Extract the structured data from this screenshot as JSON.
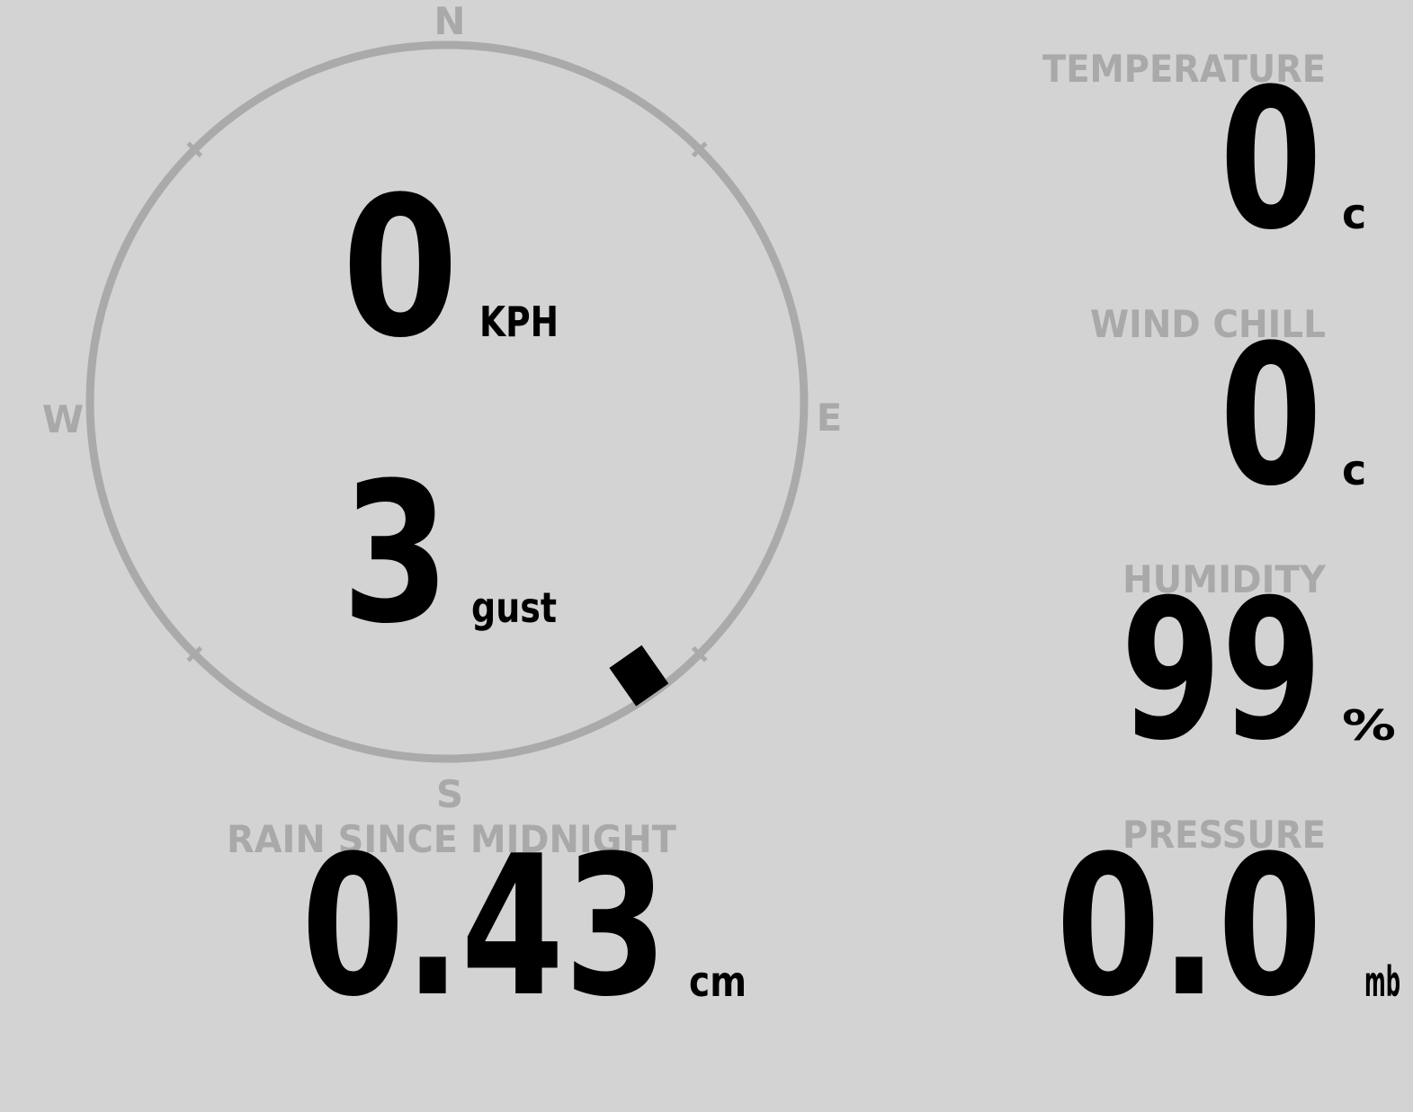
{
  "compass": {
    "north": "N",
    "east": "E",
    "south": "S",
    "west": "W"
  },
  "wind": {
    "speed": "0",
    "speed_unit": "KPH",
    "gust": "3",
    "gust_unit": "gust",
    "direction_deg": 145
  },
  "rain": {
    "label": "RAIN SINCE MIDNIGHT",
    "value": "0.43",
    "unit": "cm"
  },
  "temperature": {
    "label": "TEMPERATURE",
    "value": "0",
    "unit": "c"
  },
  "wind_chill": {
    "label": "WIND CHILL",
    "value": "0",
    "unit": "c"
  },
  "humidity": {
    "label": "HUMIDITY",
    "value": "99",
    "unit": "%"
  },
  "pressure": {
    "label": "PRESSURE",
    "value": "0.0",
    "unit": "mb"
  }
}
